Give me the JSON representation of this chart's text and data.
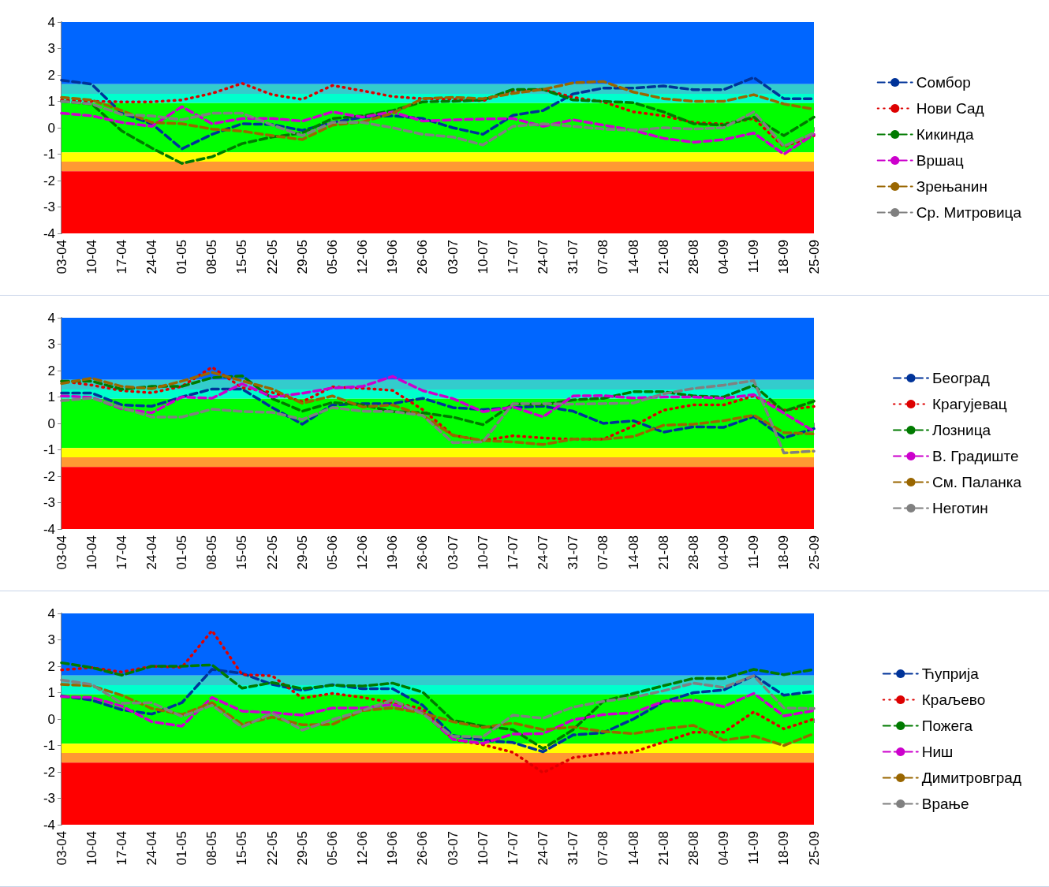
{
  "chart_data": [
    {
      "type": "line",
      "categories": [
        "03-04",
        "10-04",
        "17-04",
        "24-04",
        "01-05",
        "08-05",
        "15-05",
        "22-05",
        "29-05",
        "05-06",
        "12-06",
        "19-06",
        "26-06",
        "03-07",
        "10-07",
        "17-07",
        "24-07",
        "31-07",
        "07-08",
        "14-08",
        "21-08",
        "28-08",
        "04-09",
        "11-09",
        "18-09",
        "25-09"
      ],
      "ylim": [
        -4,
        4
      ],
      "yticks": [
        -4,
        -3,
        -2,
        -1,
        0,
        1,
        2,
        3,
        4
      ],
      "legend": "right",
      "marker": "none",
      "bands": [
        {
          "axis": "y",
          "from": 1.65,
          "to": 4,
          "color": "#0066ff"
        },
        {
          "axis": "y",
          "from": 1.28,
          "to": 1.65,
          "color": "#33cccc"
        },
        {
          "axis": "y",
          "from": 0.93,
          "to": 1.28,
          "color": "#00ffcc"
        },
        {
          "axis": "y",
          "from": -0.93,
          "to": 0.93,
          "color": "#00ff00"
        },
        {
          "axis": "y",
          "from": -1.28,
          "to": -0.93,
          "color": "#ffff00"
        },
        {
          "axis": "y",
          "from": -1.65,
          "to": -1.28,
          "color": "#ff9933"
        },
        {
          "axis": "y",
          "from": -4,
          "to": -1.65,
          "color": "#ff0000"
        }
      ],
      "series": [
        {
          "name": "Сомбор",
          "color": "#003399",
          "line_style": "dashed",
          "values": [
            1.8,
            1.65,
            0.55,
            0.15,
            -0.8,
            -0.25,
            0.15,
            0.12,
            -0.1,
            0.2,
            0.4,
            0.45,
            0.35,
            0.0,
            -0.25,
            0.47,
            0.65,
            1.28,
            1.5,
            1.5,
            1.58,
            1.44,
            1.44,
            1.9,
            1.1,
            1.1
          ]
        },
        {
          "name": "Нови Сад",
          "color": "#dd0000",
          "line_style": "dotted",
          "values": [
            1.05,
            1.0,
            0.98,
            0.98,
            1.05,
            1.3,
            1.68,
            1.25,
            1.07,
            1.6,
            1.4,
            1.18,
            1.1,
            1.08,
            1.02,
            1.4,
            1.45,
            1.15,
            0.98,
            0.6,
            0.45,
            0.2,
            0.14,
            0.35,
            -0.72,
            -0.3
          ]
        },
        {
          "name": "Кикинда",
          "color": "#007a00",
          "line_style": "dashed",
          "values": [
            1.0,
            0.9,
            -0.12,
            -0.77,
            -1.35,
            -1.1,
            -0.6,
            -0.35,
            -0.2,
            0.35,
            0.45,
            0.65,
            0.98,
            1.0,
            1.05,
            1.45,
            1.45,
            1.05,
            1.0,
            0.95,
            0.6,
            0.15,
            0.1,
            0.4,
            -0.3,
            0.4
          ]
        },
        {
          "name": "Вршац",
          "color": "#cc00cc",
          "line_style": "dashed",
          "values": [
            0.55,
            0.45,
            0.2,
            0.05,
            0.8,
            0.15,
            0.35,
            0.35,
            0.25,
            0.6,
            0.4,
            0.6,
            0.25,
            0.3,
            0.33,
            0.35,
            0.05,
            0.3,
            0.1,
            -0.1,
            -0.4,
            -0.55,
            -0.45,
            -0.2,
            -1.0,
            -0.25
          ]
        },
        {
          "name": "Зрењанин",
          "color": "#996600",
          "line_style": "dashed",
          "values": [
            1.15,
            1.05,
            0.65,
            0.2,
            0.15,
            -0.05,
            -0.13,
            -0.3,
            -0.45,
            0.1,
            0.22,
            0.55,
            1.1,
            1.15,
            1.1,
            1.3,
            1.45,
            1.7,
            1.75,
            1.35,
            1.1,
            1.0,
            1.0,
            1.25,
            0.9,
            0.7
          ]
        },
        {
          "name": "Ср. Митровица",
          "color": "#808080",
          "line_style": "dashed",
          "values": [
            1.0,
            0.9,
            0.5,
            0.45,
            0.3,
            0.55,
            0.55,
            0.1,
            -0.3,
            0.2,
            0.2,
            0.0,
            -0.25,
            -0.35,
            -0.65,
            0.05,
            0.15,
            0.05,
            -0.05,
            -0.1,
            0.0,
            -0.05,
            0.0,
            0.6,
            -0.7,
            -0.2
          ]
        }
      ]
    },
    {
      "type": "line",
      "categories": [
        "03-04",
        "10-04",
        "17-04",
        "24-04",
        "01-05",
        "08-05",
        "15-05",
        "22-05",
        "29-05",
        "05-06",
        "12-06",
        "19-06",
        "26-06",
        "03-07",
        "10-07",
        "17-07",
        "24-07",
        "31-07",
        "07-08",
        "14-08",
        "21-08",
        "28-08",
        "04-09",
        "11-09",
        "18-09",
        "25-09"
      ],
      "ylim": [
        -4,
        4
      ],
      "yticks": [
        -4,
        -3,
        -2,
        -1,
        0,
        1,
        2,
        3,
        4
      ],
      "legend": "right",
      "marker": "none",
      "bands": [
        {
          "axis": "y",
          "from": 1.65,
          "to": 4,
          "color": "#0066ff"
        },
        {
          "axis": "y",
          "from": 1.28,
          "to": 1.65,
          "color": "#33cccc"
        },
        {
          "axis": "y",
          "from": 0.93,
          "to": 1.28,
          "color": "#00ffcc"
        },
        {
          "axis": "y",
          "from": -0.93,
          "to": 0.93,
          "color": "#00ff00"
        },
        {
          "axis": "y",
          "from": -1.28,
          "to": -0.93,
          "color": "#ffff00"
        },
        {
          "axis": "y",
          "from": -1.65,
          "to": -1.28,
          "color": "#ff9933"
        },
        {
          "axis": "y",
          "from": -4,
          "to": -1.65,
          "color": "#ff0000"
        }
      ],
      "series": [
        {
          "name": "Београд",
          "color": "#003399",
          "line_style": "dashed",
          "values": [
            1.15,
            1.15,
            0.7,
            0.65,
            1.0,
            1.3,
            1.3,
            0.6,
            -0.03,
            0.7,
            0.75,
            0.75,
            0.95,
            0.6,
            0.52,
            0.6,
            0.65,
            0.46,
            0.0,
            0.1,
            -0.33,
            -0.13,
            -0.15,
            0.26,
            -0.55,
            -0.2
          ]
        },
        {
          "name": "Крагујевац",
          "color": "#dd0000",
          "line_style": "dotted",
          "values": [
            1.6,
            1.45,
            1.24,
            1.16,
            1.4,
            2.13,
            1.35,
            1.17,
            0.82,
            1.38,
            1.33,
            1.25,
            0.52,
            -0.45,
            -0.65,
            -0.47,
            -0.55,
            -0.6,
            -0.6,
            -0.1,
            0.5,
            0.7,
            0.7,
            1.04,
            0.5,
            0.64
          ]
        },
        {
          "name": "Лозница",
          "color": "#007a00",
          "line_style": "dashed",
          "values": [
            1.6,
            1.6,
            1.29,
            1.4,
            1.4,
            1.73,
            1.8,
            0.94,
            0.46,
            0.79,
            0.7,
            0.45,
            0.4,
            0.24,
            -0.05,
            0.74,
            0.7,
            0.89,
            0.95,
            1.2,
            1.2,
            1.04,
            1.0,
            1.44,
            0.46,
            0.84
          ]
        },
        {
          "name": "В. Градиште",
          "color": "#cc00cc",
          "line_style": "dashed",
          "values": [
            1.04,
            0.99,
            0.55,
            0.4,
            1.0,
            0.95,
            1.5,
            1.0,
            1.14,
            1.34,
            1.4,
            1.78,
            1.24,
            0.94,
            0.44,
            0.62,
            0.25,
            1.04,
            1.05,
            0.96,
            1.0,
            1.0,
            0.95,
            1.09,
            0.39,
            -0.3
          ]
        },
        {
          "name": "См. Паланка",
          "color": "#996600",
          "line_style": "dashed",
          "values": [
            1.51,
            1.71,
            1.4,
            1.31,
            1.6,
            1.93,
            1.61,
            1.3,
            0.76,
            1.04,
            0.62,
            0.7,
            0.3,
            -0.45,
            -0.65,
            -0.7,
            -0.8,
            -0.6,
            -0.6,
            -0.5,
            -0.07,
            -0.03,
            0.1,
            0.31,
            -0.35,
            -0.4
          ]
        },
        {
          "name": "Неготин",
          "color": "#808080",
          "line_style": "dashed",
          "values": [
            0.86,
            0.96,
            0.6,
            0.24,
            0.24,
            0.54,
            0.45,
            0.42,
            0.15,
            0.6,
            0.46,
            0.45,
            0.3,
            -0.73,
            -0.7,
            0.75,
            0.75,
            0.73,
            0.75,
            0.77,
            1.12,
            1.32,
            1.45,
            1.62,
            -1.12,
            -1.05
          ]
        }
      ]
    },
    {
      "type": "line",
      "categories": [
        "03-04",
        "10-04",
        "17-04",
        "24-04",
        "01-05",
        "08-05",
        "15-05",
        "22-05",
        "29-05",
        "05-06",
        "12-06",
        "19-06",
        "26-06",
        "03-07",
        "10-07",
        "17-07",
        "24-07",
        "31-07",
        "07-08",
        "14-08",
        "21-08",
        "28-08",
        "04-09",
        "11-09",
        "18-09",
        "25-09"
      ],
      "ylim": [
        -4,
        4
      ],
      "yticks": [
        -4,
        -3,
        -2,
        -1,
        0,
        1,
        2,
        3,
        4
      ],
      "legend": "right",
      "marker": "none",
      "bands": [
        {
          "axis": "y",
          "from": 1.65,
          "to": 4,
          "color": "#0066ff"
        },
        {
          "axis": "y",
          "from": 1.28,
          "to": 1.65,
          "color": "#33cccc"
        },
        {
          "axis": "y",
          "from": 0.93,
          "to": 1.28,
          "color": "#00ffcc"
        },
        {
          "axis": "y",
          "from": -0.93,
          "to": 0.93,
          "color": "#00ff00"
        },
        {
          "axis": "y",
          "from": -1.28,
          "to": -0.93,
          "color": "#ffff00"
        },
        {
          "axis": "y",
          "from": -1.65,
          "to": -1.28,
          "color": "#ff9933"
        },
        {
          "axis": "y",
          "from": -4,
          "to": -1.65,
          "color": "#ff0000"
        }
      ],
      "series": [
        {
          "name": "Ћуприја",
          "color": "#003399",
          "line_style": "dashed",
          "values": [
            0.87,
            0.72,
            0.35,
            0.19,
            0.62,
            1.88,
            1.73,
            1.31,
            1.09,
            1.3,
            1.15,
            1.15,
            0.52,
            -0.62,
            -0.8,
            -0.89,
            -1.24,
            -0.6,
            -0.52,
            0.0,
            0.65,
            1.0,
            1.1,
            1.65,
            0.9,
            1.05
          ]
        },
        {
          "name": "Краљево",
          "color": "#dd0000",
          "line_style": "dotted",
          "values": [
            1.86,
            1.95,
            1.78,
            2.0,
            1.96,
            3.35,
            1.68,
            1.64,
            0.79,
            0.97,
            0.82,
            0.62,
            0.39,
            -0.77,
            -0.97,
            -1.26,
            -2.03,
            -1.46,
            -1.31,
            -1.25,
            -0.87,
            -0.5,
            -0.5,
            0.27,
            -0.37,
            0.0
          ]
        },
        {
          "name": "Пожега",
          "color": "#007a00",
          "line_style": "dashed",
          "values": [
            2.13,
            1.95,
            1.66,
            2.0,
            2.0,
            2.05,
            1.17,
            1.38,
            1.15,
            1.28,
            1.25,
            1.36,
            1.02,
            -0.05,
            -0.27,
            -0.4,
            -1.12,
            -0.4,
            0.67,
            0.97,
            1.26,
            1.54,
            1.54,
            1.88,
            1.68,
            1.88
          ]
        },
        {
          "name": "Ниш",
          "color": "#cc00cc",
          "line_style": "dashed",
          "values": [
            0.85,
            0.82,
            0.49,
            -0.1,
            -0.27,
            0.82,
            0.3,
            0.24,
            0.15,
            0.42,
            0.42,
            0.55,
            0.27,
            -0.77,
            -0.92,
            -0.57,
            -0.55,
            -0.03,
            0.17,
            0.24,
            0.67,
            0.72,
            0.47,
            0.97,
            0.12,
            0.32
          ]
        },
        {
          "name": "Димитровград",
          "color": "#996600",
          "line_style": "dashed",
          "values": [
            1.31,
            1.26,
            0.9,
            0.4,
            0.17,
            0.62,
            -0.2,
            0.07,
            -0.22,
            -0.2,
            0.32,
            0.42,
            0.23,
            -0.1,
            -0.32,
            -0.15,
            -0.4,
            -0.3,
            -0.47,
            -0.55,
            -0.37,
            -0.24,
            -0.8,
            -0.64,
            -1.0,
            -0.55
          ]
        },
        {
          "name": "Врање",
          "color": "#808080",
          "line_style": "dashed",
          "values": [
            1.48,
            1.31,
            0.6,
            0.62,
            0.1,
            0.52,
            -0.3,
            0.22,
            -0.42,
            -0.02,
            0.32,
            0.72,
            0.2,
            -0.65,
            -0.67,
            0.15,
            0.03,
            0.45,
            0.67,
            0.82,
            1.07,
            1.36,
            1.2,
            1.64,
            0.42,
            0.4
          ]
        }
      ]
    }
  ]
}
